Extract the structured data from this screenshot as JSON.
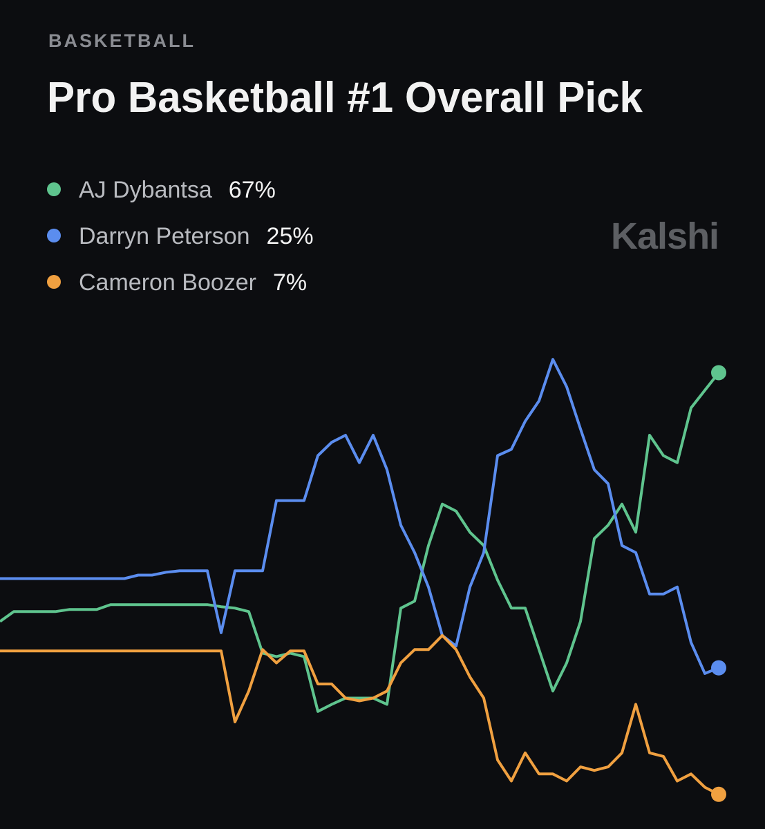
{
  "chart_data": {
    "type": "line",
    "category": "BASKETBALL",
    "title": "Pro Basketball #1 Overall Pick",
    "brand": "Kalshi",
    "ylim": [
      0,
      70
    ],
    "series": [
      {
        "name": "AJ Dybantsa",
        "chance": "67%",
        "color": "#5fc48e",
        "values": [
          31.6,
          33.0,
          33.0,
          33.0,
          33.0,
          33.3,
          33.3,
          33.3,
          34.0,
          34.0,
          34.0,
          34.0,
          34.0,
          34.0,
          34.0,
          34.0,
          33.7,
          33.5,
          33.0,
          27.1,
          26.6,
          27.1,
          26.6,
          18.8,
          19.8,
          20.7,
          20.7,
          20.7,
          19.8,
          33.5,
          34.5,
          42.4,
          48.3,
          47.3,
          44.3,
          42.4,
          37.5,
          33.5,
          33.5,
          27.6,
          21.7,
          25.7,
          31.6,
          43.4,
          45.3,
          48.3,
          44.3,
          58.1,
          55.2,
          54.2,
          62.0,
          64.5,
          67.0
        ]
      },
      {
        "name": "Darryn Peterson",
        "chance": "25%",
        "color": "#5b8def",
        "values": [
          37.7,
          37.7,
          37.7,
          37.7,
          37.7,
          37.7,
          37.7,
          37.7,
          37.7,
          37.7,
          38.2,
          38.2,
          38.6,
          38.8,
          38.8,
          38.8,
          30.0,
          38.8,
          38.8,
          38.8,
          48.8,
          48.8,
          48.8,
          55.2,
          57.1,
          58.1,
          54.2,
          58.1,
          53.2,
          45.3,
          41.4,
          36.5,
          29.6,
          28.1,
          36.5,
          41.4,
          55.2,
          56.1,
          60.1,
          63.0,
          68.9,
          65.0,
          59.0,
          53.2,
          51.2,
          42.4,
          41.4,
          35.5,
          35.5,
          36.5,
          28.6,
          24.2,
          25.0
        ]
      },
      {
        "name": "Cameron Boozer",
        "chance": "7%",
        "color": "#f0a040",
        "values": [
          27.4,
          27.4,
          27.4,
          27.4,
          27.4,
          27.4,
          27.4,
          27.4,
          27.4,
          27.4,
          27.4,
          27.4,
          27.4,
          27.4,
          27.4,
          27.4,
          27.4,
          17.3,
          21.7,
          27.6,
          25.7,
          27.4,
          27.4,
          22.7,
          22.7,
          20.7,
          20.3,
          20.7,
          21.7,
          25.7,
          27.6,
          27.6,
          29.6,
          27.6,
          23.7,
          20.7,
          11.9,
          8.9,
          12.9,
          9.9,
          9.9,
          8.9,
          10.9,
          10.4,
          10.9,
          12.9,
          19.8,
          12.9,
          12.4,
          8.9,
          9.9,
          8.0,
          7.0
        ]
      }
    ]
  }
}
